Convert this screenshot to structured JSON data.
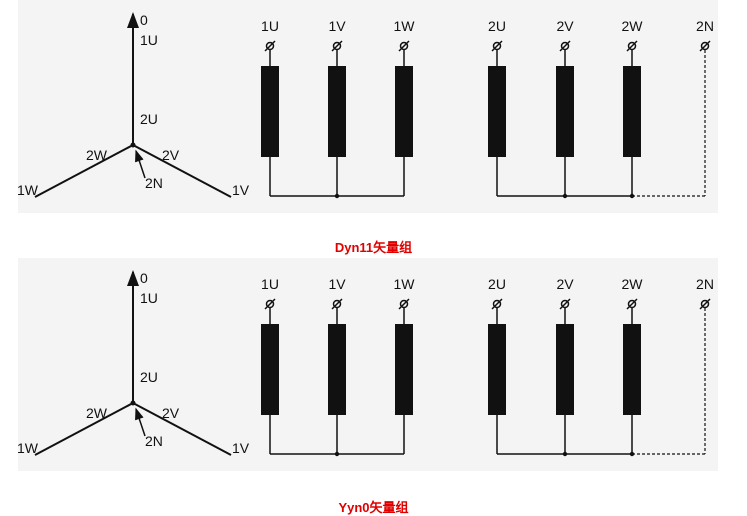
{
  "diagrams": [
    {
      "caption": "Dyn11矢量组",
      "vector": {
        "top": "0",
        "primary_u": "1U",
        "secondary_u": "2U",
        "secondary_w": "2W",
        "secondary_v": "2V",
        "neutral": "2N",
        "primary_w": "1W",
        "primary_v": "1V"
      },
      "terminals": [
        "1U",
        "1V",
        "1W",
        "2U",
        "2V",
        "2W",
        "2N"
      ]
    },
    {
      "caption": "Yyn0矢量组",
      "vector": {
        "top": "0",
        "primary_u": "1U",
        "secondary_u": "2U",
        "secondary_w": "2W",
        "secondary_v": "2V",
        "neutral": "2N",
        "primary_w": "1W",
        "primary_v": "1V"
      },
      "terminals": [
        "1U",
        "1V",
        "1W",
        "2U",
        "2V",
        "2W",
        "2N"
      ]
    }
  ],
  "colors": {
    "panel": "#f4f4f4",
    "ink": "#111111",
    "caption": "#e00000"
  }
}
